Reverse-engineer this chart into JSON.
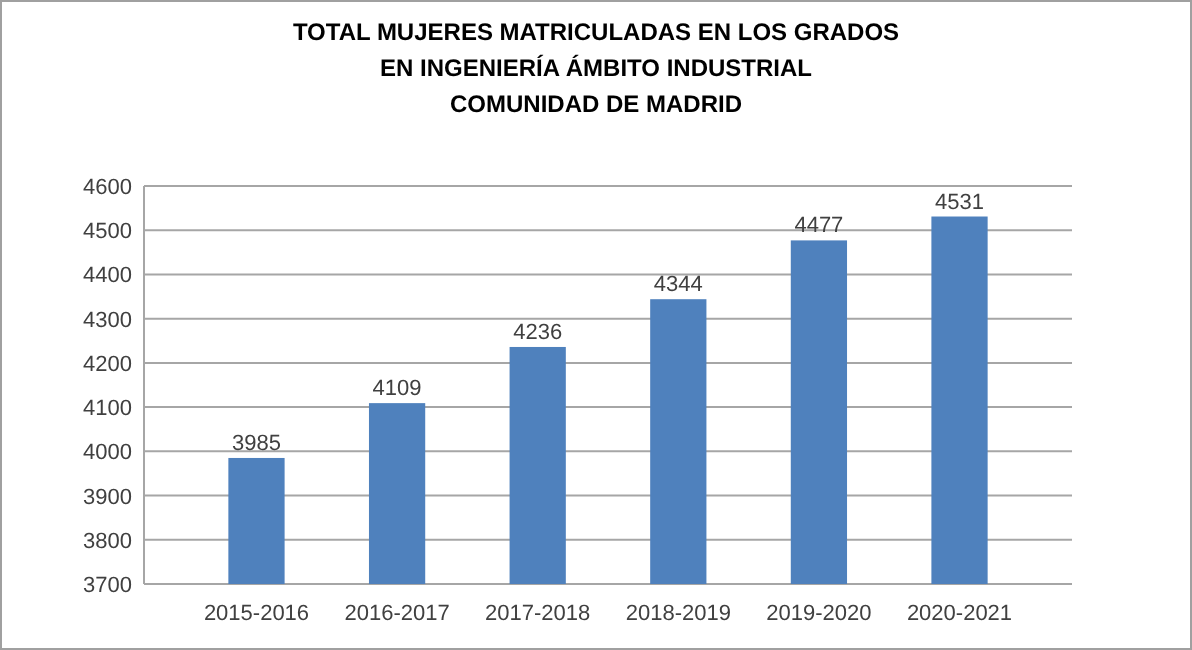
{
  "chart_data": {
    "type": "bar",
    "title": "TOTAL MUJERES MATRICULADAS EN LOS GRADOS\nEN INGENIERÍA ÁMBITO INDUSTRIAL\nCOMUNIDAD DE MADRID",
    "categories": [
      "2015-2016",
      "2016-2017",
      "2017-2018",
      "2018-2019",
      "2019-2020",
      "2020-2021"
    ],
    "values": [
      3985,
      4109,
      4236,
      4344,
      4477,
      4531
    ],
    "color": "#4f81bd",
    "ylim": [
      3700,
      4600
    ],
    "yticks": [
      3700,
      3800,
      3900,
      4000,
      4100,
      4200,
      4300,
      4400,
      4500,
      4600
    ],
    "grid": true,
    "data_labels": true
  }
}
